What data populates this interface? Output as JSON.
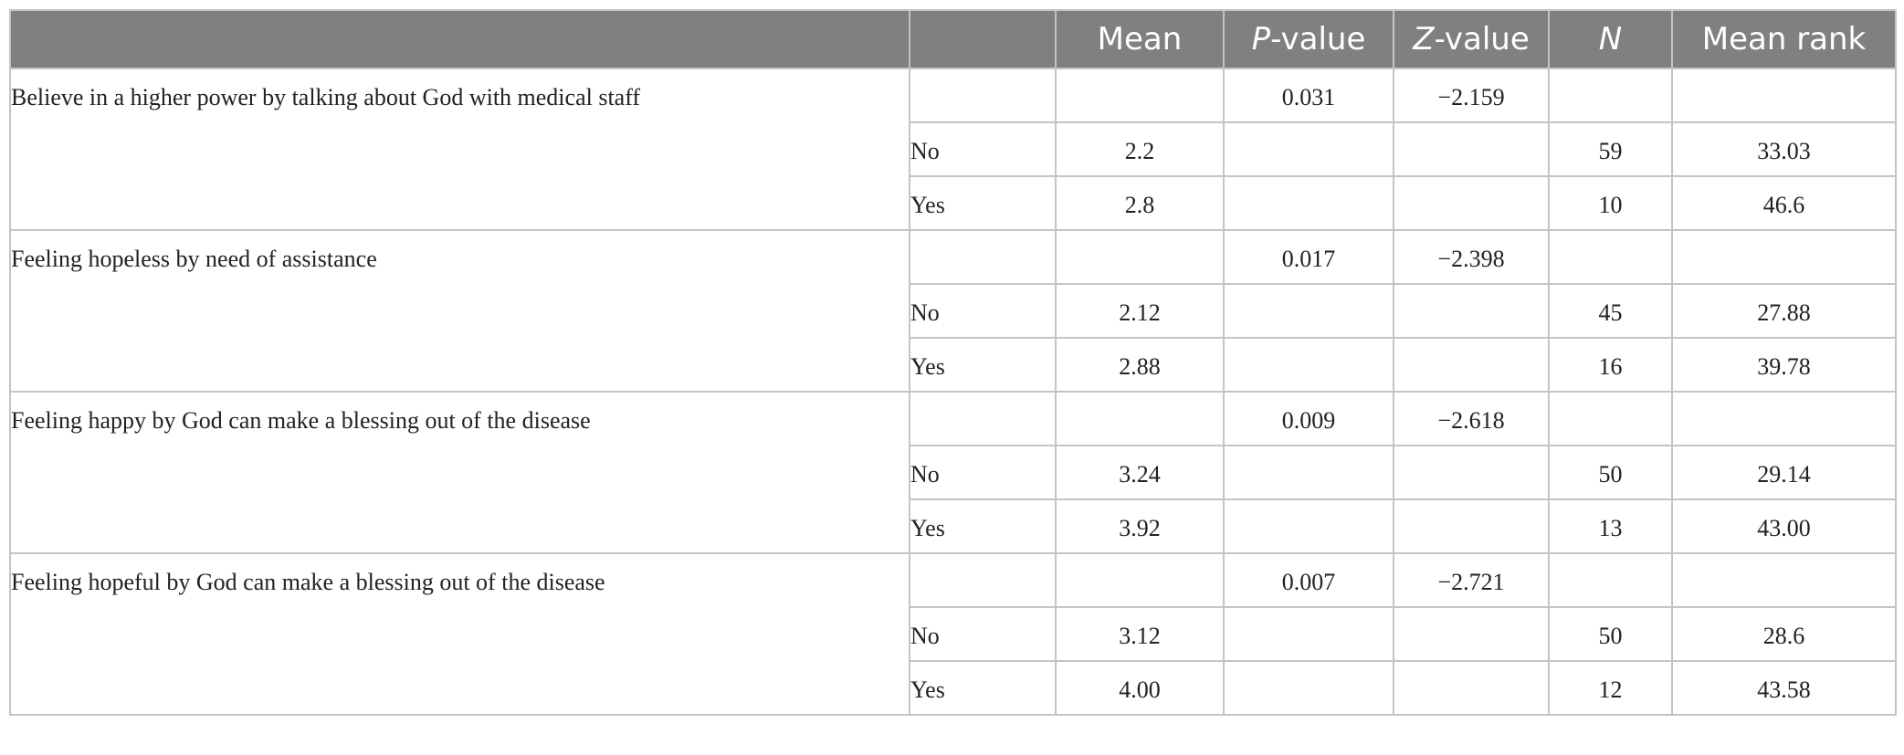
{
  "header": {
    "col_item": "",
    "col_group": "",
    "mean": "Mean",
    "p_value_letter": "P",
    "p_value_rest": "-value",
    "z_value_letter": "Z",
    "z_value_rest": "-value",
    "n": "N",
    "mean_rank": "Mean rank"
  },
  "sections": [
    {
      "item": "Believe in a higher power by talking about God with medical staff",
      "p_value": "0.031",
      "z_value": "−2.159",
      "rows": [
        {
          "group": "No",
          "mean": "2.2",
          "n": "59",
          "mean_rank": "33.03"
        },
        {
          "group": "Yes",
          "mean": "2.8",
          "n": "10",
          "mean_rank": "46.6"
        }
      ]
    },
    {
      "item": "Feeling hopeless by need of assistance",
      "p_value": "0.017",
      "z_value": "−2.398",
      "rows": [
        {
          "group": "No",
          "mean": "2.12",
          "n": "45",
          "mean_rank": "27.88"
        },
        {
          "group": "Yes",
          "mean": "2.88",
          "n": "16",
          "mean_rank": "39.78"
        }
      ]
    },
    {
      "item": "Feeling happy by God can make a blessing out of the disease",
      "p_value": "0.009",
      "z_value": "−2.618",
      "rows": [
        {
          "group": "No",
          "mean": "3.24",
          "n": "50",
          "mean_rank": "29.14"
        },
        {
          "group": "Yes",
          "mean": "3.92",
          "n": "13",
          "mean_rank": "43.00"
        }
      ]
    },
    {
      "item": "Feeling hopeful by God can make a blessing out of the disease",
      "p_value": "0.007",
      "z_value": "−2.721",
      "rows": [
        {
          "group": "No",
          "mean": "3.12",
          "n": "50",
          "mean_rank": "28.6"
        },
        {
          "group": "Yes",
          "mean": "4.00",
          "n": "12",
          "mean_rank": "43.58"
        }
      ]
    }
  ]
}
